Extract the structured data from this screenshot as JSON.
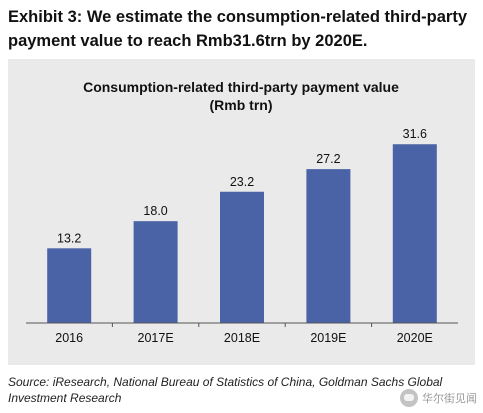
{
  "exhibit_title": "Exhibit 3: We estimate the consumption-related third-party payment value to reach Rmb31.6trn by 2020E.",
  "source": "Source: iResearch, National Bureau of Statistics of China, Goldman Sachs Global Investment Research",
  "watermark": {
    "text": "华尔街见闻",
    "icon": "watermark-logo-icon"
  },
  "colors": {
    "bar": "#4a63a6",
    "panel": "#eaeaea",
    "axis": "#555555"
  },
  "chart_data": {
    "type": "bar",
    "title": "Consumption-related third-party payment value",
    "subtitle": "(Rmb trn)",
    "categories": [
      "2016",
      "2017E",
      "2018E",
      "2019E",
      "2020E"
    ],
    "values": [
      13.2,
      18.0,
      23.2,
      27.2,
      31.6
    ],
    "value_labels": [
      "13.2",
      "18.0",
      "23.2",
      "27.2",
      "31.6"
    ],
    "ylim": [
      0,
      35
    ],
    "grid": false,
    "legend": "none"
  }
}
